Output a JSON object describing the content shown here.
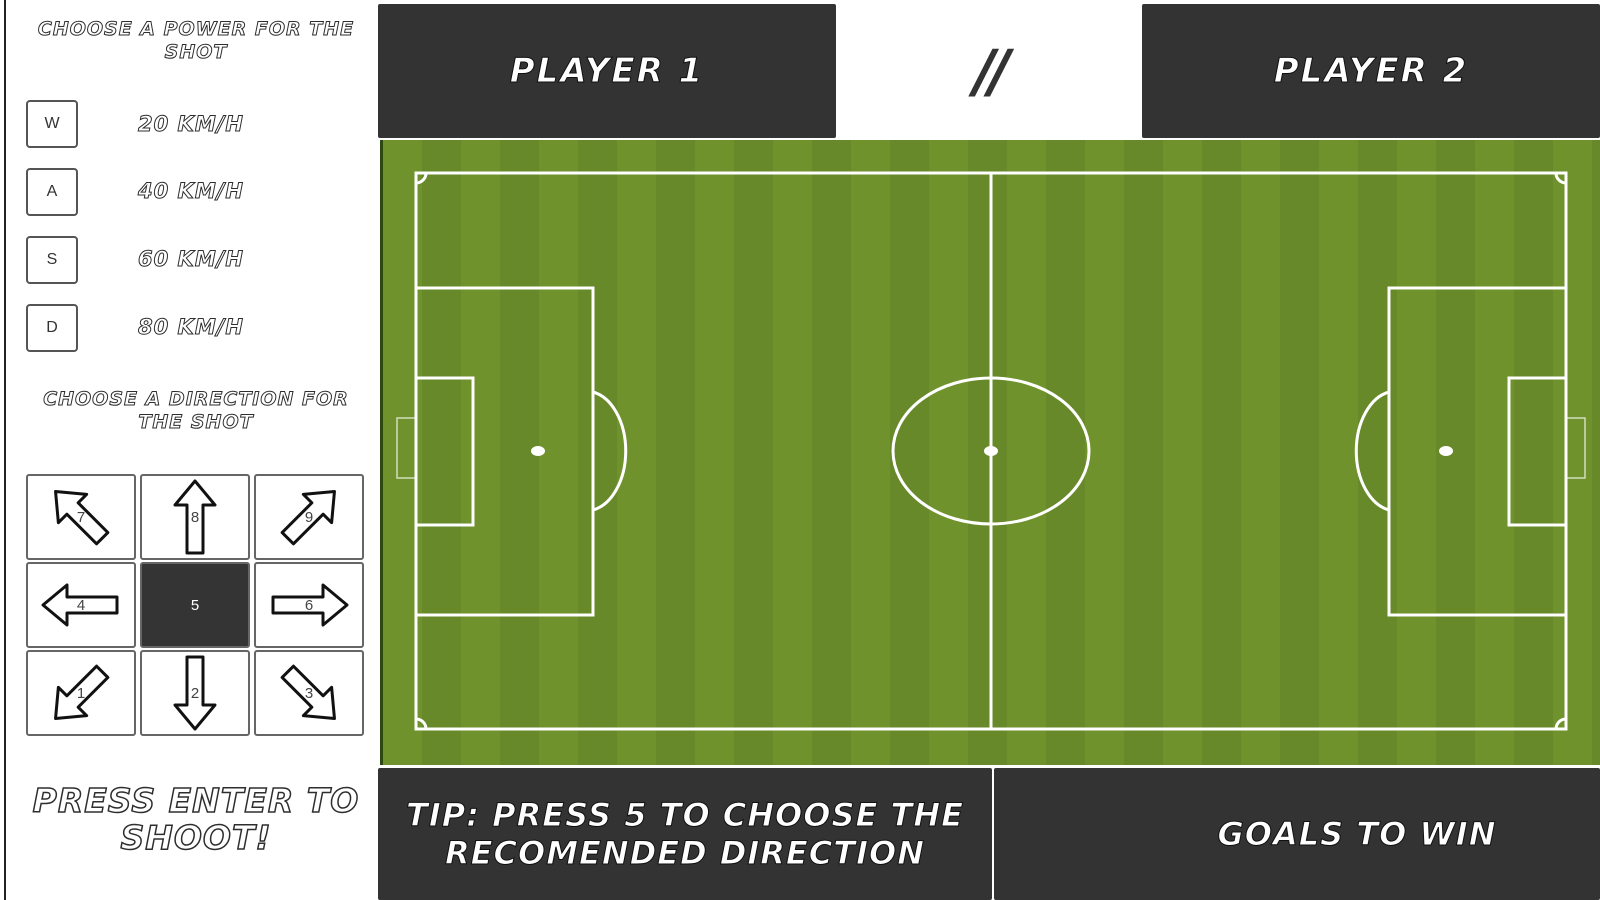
{
  "power_panel": {
    "title": "Choose a power for the shot",
    "options": [
      {
        "key": "W",
        "speed": "20 km/h"
      },
      {
        "key": "A",
        "speed": "40 km/h"
      },
      {
        "key": "S",
        "speed": "60 km/h"
      },
      {
        "key": "D",
        "speed": "80 km/h"
      }
    ]
  },
  "direction_panel": {
    "title": "Choose a direction for the shot",
    "keys": [
      {
        "num": "7",
        "dir": "up-left"
      },
      {
        "num": "8",
        "dir": "up"
      },
      {
        "num": "9",
        "dir": "up-right"
      },
      {
        "num": "4",
        "dir": "left"
      },
      {
        "num": "5",
        "dir": "center",
        "selected": true
      },
      {
        "num": "6",
        "dir": "right"
      },
      {
        "num": "1",
        "dir": "down-left"
      },
      {
        "num": "2",
        "dir": "down"
      },
      {
        "num": "3",
        "dir": "down-right"
      }
    ]
  },
  "shoot_prompt": "Press Enter to shoot!",
  "scoreboard": {
    "player1": "Player 1",
    "player2": "Player 2",
    "score": "//"
  },
  "tip": "Tip: press 5 to choose the recomended direction",
  "goals_to_win": "Goals to win",
  "colors": {
    "panel_dark": "#333333",
    "pitch_green_light": "#6f922c",
    "pitch_green_dark": "#65882a",
    "line": "#ffffff"
  }
}
